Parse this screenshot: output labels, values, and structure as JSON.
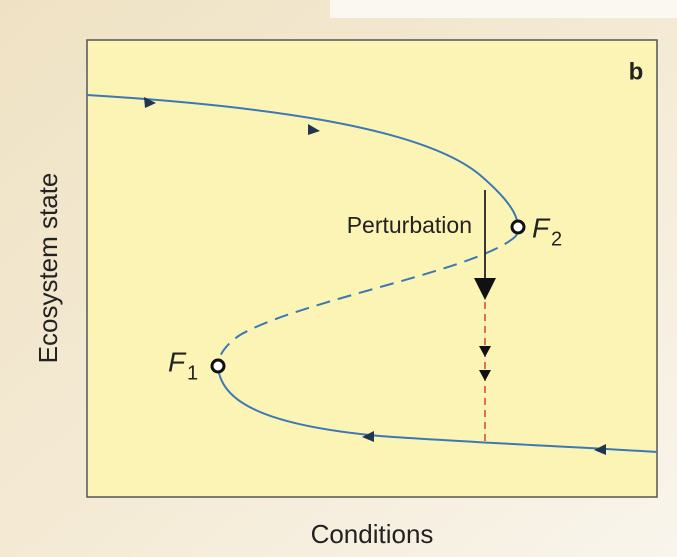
{
  "panel_label": "b",
  "annotation": "Perturbation",
  "points": [
    {
      "label": "F",
      "subscript": "2"
    },
    {
      "label": "F",
      "subscript": "1"
    }
  ],
  "x_axis_label": "Conditions",
  "y_axis_label": "Ecosystem state"
}
